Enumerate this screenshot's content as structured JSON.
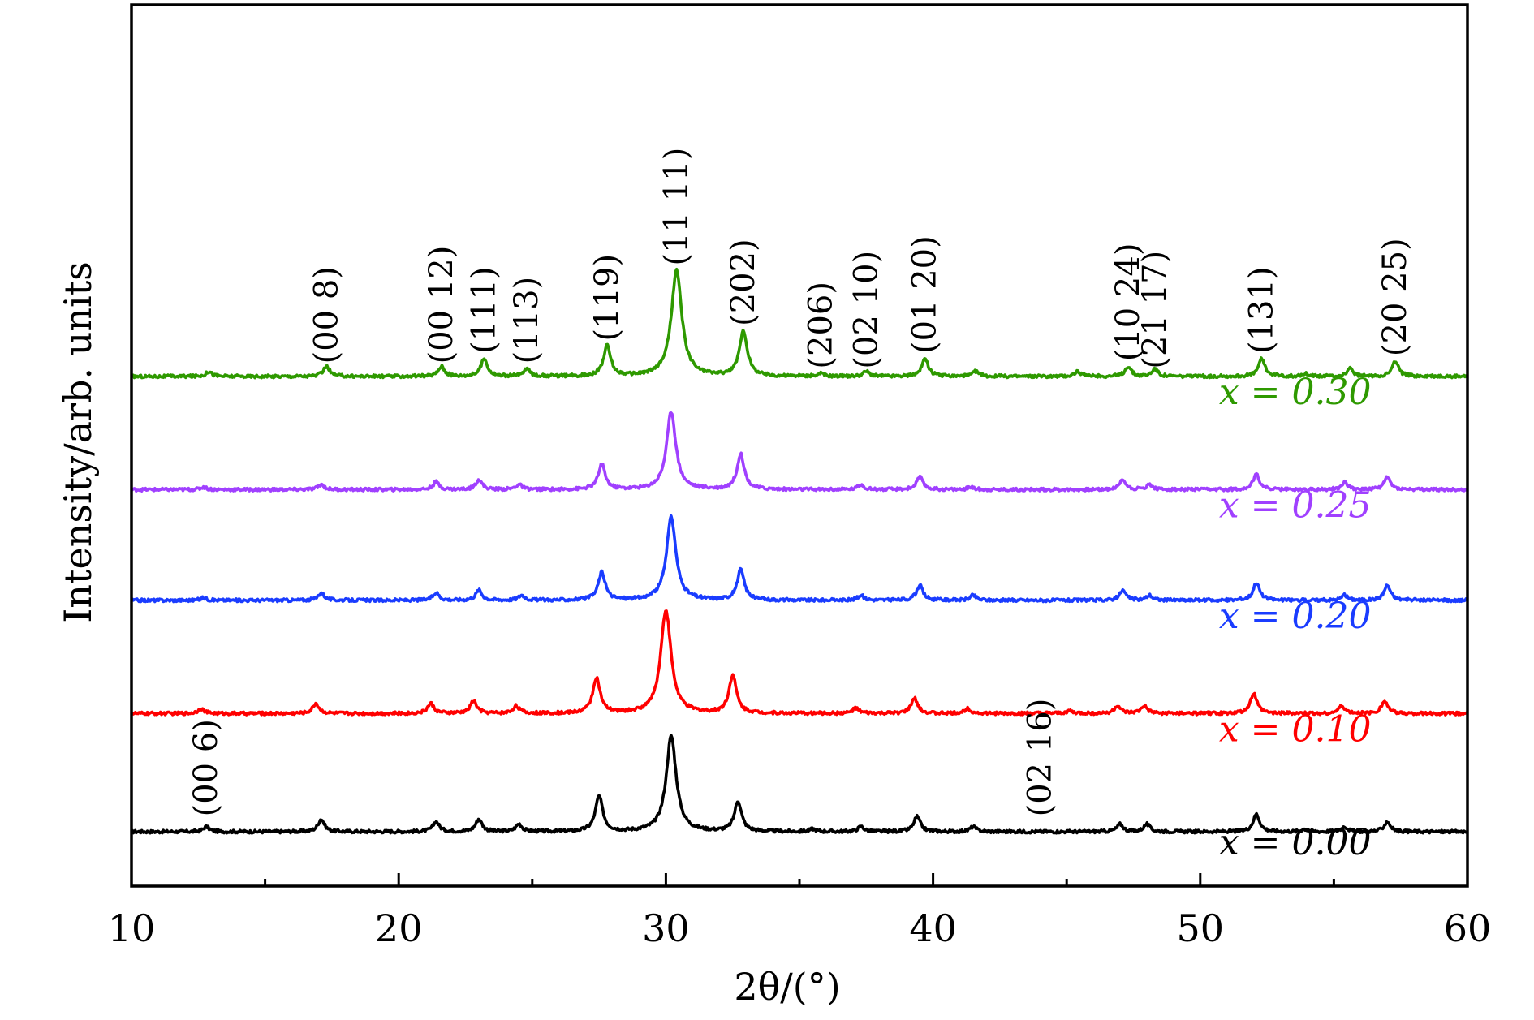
{
  "chart_data": {
    "type": "line",
    "title": "",
    "xlabel": "2θ/(°)",
    "ylabel": "Intensity/arb. units",
    "xlim": [
      10,
      60
    ],
    "xticks": [
      10,
      20,
      30,
      40,
      50,
      60
    ],
    "yticks": [],
    "grid": false,
    "series": [
      {
        "name": "x = 0.00",
        "color": "#000000",
        "baseline": 0.0,
        "peaks": [
          [
            12.8,
            0.02
          ],
          [
            17.1,
            0.05
          ],
          [
            21.4,
            0.04
          ],
          [
            23.0,
            0.05
          ],
          [
            24.5,
            0.03
          ],
          [
            27.5,
            0.14
          ],
          [
            30.2,
            0.38
          ],
          [
            32.7,
            0.12
          ],
          [
            35.5,
            0.01
          ],
          [
            37.3,
            0.02
          ],
          [
            39.4,
            0.06
          ],
          [
            41.5,
            0.02
          ],
          [
            47.0,
            0.03
          ],
          [
            48.0,
            0.03
          ],
          [
            52.1,
            0.07
          ],
          [
            53.9,
            0.01
          ],
          [
            55.4,
            0.02
          ],
          [
            57.0,
            0.04
          ]
        ]
      },
      {
        "name": "x = 0.10",
        "color": "#ff0000",
        "baseline": 0.47,
        "peaks": [
          [
            12.6,
            0.02
          ],
          [
            16.9,
            0.04
          ],
          [
            21.2,
            0.04
          ],
          [
            22.8,
            0.05
          ],
          [
            24.4,
            0.03
          ],
          [
            27.4,
            0.14
          ],
          [
            30.0,
            0.41
          ],
          [
            32.5,
            0.15
          ],
          [
            37.1,
            0.02
          ],
          [
            39.3,
            0.06
          ],
          [
            41.3,
            0.02
          ],
          [
            45.1,
            0.01
          ],
          [
            46.9,
            0.03
          ],
          [
            47.9,
            0.03
          ],
          [
            52.0,
            0.08
          ],
          [
            55.3,
            0.03
          ],
          [
            56.9,
            0.05
          ]
        ]
      },
      {
        "name": "x = 0.20",
        "color": "#1a3cff",
        "baseline": 0.92,
        "peaks": [
          [
            12.7,
            0.01
          ],
          [
            17.1,
            0.03
          ],
          [
            21.4,
            0.03
          ],
          [
            23.0,
            0.04
          ],
          [
            24.6,
            0.02
          ],
          [
            27.6,
            0.11
          ],
          [
            30.2,
            0.33
          ],
          [
            32.8,
            0.12
          ],
          [
            37.3,
            0.02
          ],
          [
            39.5,
            0.06
          ],
          [
            41.5,
            0.02
          ],
          [
            47.1,
            0.04
          ],
          [
            48.1,
            0.02
          ],
          [
            52.1,
            0.07
          ],
          [
            55.4,
            0.02
          ],
          [
            57.0,
            0.06
          ]
        ]
      },
      {
        "name": "x = 0.25",
        "color": "#a040ff",
        "baseline": 1.36,
        "peaks": [
          [
            12.7,
            0.01
          ],
          [
            17.1,
            0.02
          ],
          [
            21.4,
            0.03
          ],
          [
            23.0,
            0.04
          ],
          [
            24.5,
            0.02
          ],
          [
            27.6,
            0.1
          ],
          [
            30.2,
            0.31
          ],
          [
            32.8,
            0.14
          ],
          [
            37.3,
            0.02
          ],
          [
            39.5,
            0.05
          ],
          [
            41.4,
            0.01
          ],
          [
            47.1,
            0.04
          ],
          [
            48.1,
            0.02
          ],
          [
            52.1,
            0.06
          ],
          [
            55.4,
            0.03
          ],
          [
            57.0,
            0.05
          ]
        ]
      },
      {
        "name": "x = 0.30",
        "color": "#2e9900",
        "baseline": 1.81,
        "peaks": [
          [
            12.9,
            0.02
          ],
          [
            17.3,
            0.04
          ],
          [
            21.6,
            0.04
          ],
          [
            23.2,
            0.07
          ],
          [
            24.8,
            0.03
          ],
          [
            27.8,
            0.12
          ],
          [
            30.4,
            0.42
          ],
          [
            32.9,
            0.18
          ],
          [
            35.8,
            0.01
          ],
          [
            37.5,
            0.02
          ],
          [
            39.7,
            0.07
          ],
          [
            41.6,
            0.02
          ],
          [
            45.4,
            0.02
          ],
          [
            47.3,
            0.04
          ],
          [
            48.3,
            0.03
          ],
          [
            52.3,
            0.07
          ],
          [
            54.0,
            0.01
          ],
          [
            55.6,
            0.03
          ],
          [
            57.3,
            0.06
          ]
        ]
      }
    ],
    "series_labels": [
      {
        "text": "x = 0.00",
        "x": 50.7,
        "y": -0.09,
        "color": "#000000"
      },
      {
        "text": "x = 0.10",
        "x": 50.7,
        "y": 0.36,
        "color": "#ff0000"
      },
      {
        "text": "x = 0.20",
        "x": 50.7,
        "y": 0.81,
        "color": "#1a3cff"
      },
      {
        "text": "x = 0.25",
        "x": 50.7,
        "y": 1.25,
        "color": "#a040ff"
      },
      {
        "text": "x = 0.30",
        "x": 50.7,
        "y": 1.7,
        "color": "#2e9900"
      }
    ],
    "peak_labels": [
      {
        "text": "(00 6)",
        "x": 12.8,
        "y": 0.06
      },
      {
        "text": "(02 16)",
        "x": 44.0,
        "y": 0.06
      },
      {
        "text": "(00 8)",
        "x": 17.3,
        "y": 1.86
      },
      {
        "text": "(00 12)",
        "x": 21.6,
        "y": 1.86
      },
      {
        "text": "(111)",
        "x": 23.2,
        "y": 1.9
      },
      {
        "text": "(113)",
        "x": 24.8,
        "y": 1.86
      },
      {
        "text": "(119)",
        "x": 27.8,
        "y": 1.95
      },
      {
        "text": "(11 11)",
        "x": 30.4,
        "y": 2.25
      },
      {
        "text": "(202)",
        "x": 32.9,
        "y": 2.01
      },
      {
        "text": "(206)",
        "x": 35.8,
        "y": 1.84
      },
      {
        "text": "(02 10)",
        "x": 37.5,
        "y": 1.84
      },
      {
        "text": "(01 20)",
        "x": 39.7,
        "y": 1.9
      },
      {
        "text": "(10 24)",
        "x": 47.3,
        "y": 1.87
      },
      {
        "text": "(21 17)",
        "x": 48.3,
        "y": 1.84
      },
      {
        "text": "(131)",
        "x": 52.3,
        "y": 1.9
      },
      {
        "text": "(20 25)",
        "x": 57.3,
        "y": 1.89
      }
    ]
  }
}
